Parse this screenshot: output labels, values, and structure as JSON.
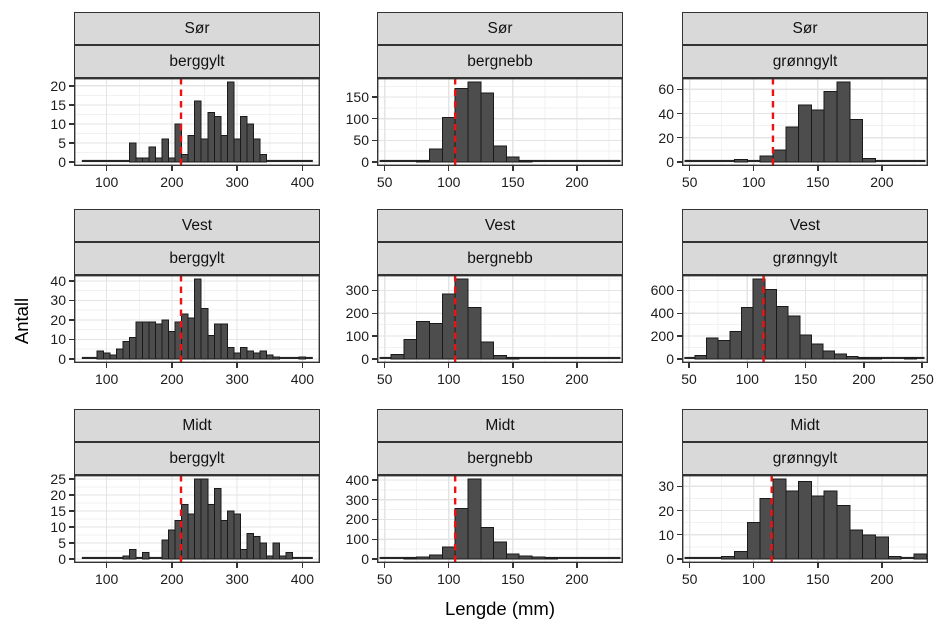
{
  "figure": {
    "ylabel": "Antall",
    "xlabel": "Lengde (mm)",
    "colors": {
      "bar_fill": "#4d4d4d",
      "bar_stroke": "#1a1a1a",
      "vline_red": "#f01010",
      "strip_bg": "#d9d9d9",
      "panel_border": "#333333",
      "grid_major": "#e4e4e4",
      "grid_minor": "#f2f2f2",
      "text": "#151515"
    }
  },
  "chart_data": [
    {
      "type": "bar",
      "facet_row": "Sør",
      "facet_col": "berggylt",
      "xlabel": "Lengde (mm)",
      "ylabel": "Antall",
      "bin_start": 135,
      "bin_width": 10,
      "counts": [
        5,
        1,
        1,
        4,
        1,
        6,
        1,
        10,
        2,
        7,
        16,
        6,
        13,
        12,
        7,
        21,
        6,
        12,
        10,
        6,
        2
      ],
      "vline_x": 214,
      "baseline_span": [
        62,
        416
      ],
      "x_range": [
        50,
        427
      ],
      "x_ticks": [
        100,
        200,
        300,
        400
      ],
      "y_ticks": [
        0,
        5,
        10,
        15,
        20
      ],
      "grid": true
    },
    {
      "type": "bar",
      "facet_row": "Sør",
      "facet_col": "bergnebb",
      "xlabel": "Lengde (mm)",
      "ylabel": "Antall",
      "bin_start": 75,
      "bin_width": 10,
      "counts": [
        2,
        30,
        103,
        170,
        185,
        160,
        37,
        12,
        2
      ],
      "vline_x": 105,
      "baseline_span": [
        46,
        234
      ],
      "x_range": [
        44,
        236
      ],
      "x_ticks": [
        50,
        100,
        150,
        200
      ],
      "y_ticks": [
        0,
        50,
        100,
        150
      ],
      "grid": true
    },
    {
      "type": "bar",
      "facet_row": "Sør",
      "facet_col": "grønngylt",
      "xlabel": "Lengde (mm)",
      "ylabel": "Antall",
      "bin_start": 85,
      "bin_width": 10,
      "counts": [
        2,
        0,
        5,
        10,
        29,
        47,
        43,
        58,
        66,
        35,
        3
      ],
      "vline_x": 115,
      "baseline_span": [
        46,
        234
      ],
      "x_range": [
        44,
        236
      ],
      "x_ticks": [
        50,
        100,
        150,
        200
      ],
      "y_ticks": [
        0,
        20,
        40,
        60
      ],
      "grid": true
    },
    {
      "type": "bar",
      "facet_row": "Vest",
      "facet_col": "berggylt",
      "xlabel": "Lengde (mm)",
      "ylabel": "Antall",
      "bin_start": 85,
      "bin_width": 10,
      "counts": [
        4,
        3,
        2,
        5,
        9,
        11,
        19,
        19,
        19,
        18,
        20,
        14,
        19,
        23,
        21,
        41,
        26,
        12,
        18,
        18,
        6,
        3,
        6,
        4,
        3,
        4,
        2,
        1,
        0,
        0,
        0,
        1
      ],
      "vline_x": 214,
      "baseline_span": [
        62,
        416
      ],
      "x_range": [
        50,
        427
      ],
      "x_ticks": [
        100,
        200,
        300,
        400
      ],
      "y_ticks": [
        0,
        10,
        20,
        30,
        40
      ],
      "grid": true
    },
    {
      "type": "bar",
      "facet_row": "Vest",
      "facet_col": "bergnebb",
      "xlabel": "Lengde (mm)",
      "ylabel": "Antall",
      "bin_start": 55,
      "bin_width": 10,
      "counts": [
        20,
        85,
        165,
        155,
        285,
        350,
        225,
        75,
        15,
        5
      ],
      "vline_x": 105,
      "baseline_span": [
        46,
        234
      ],
      "x_range": [
        44,
        236
      ],
      "x_ticks": [
        50,
        100,
        150,
        200
      ],
      "y_ticks": [
        0,
        100,
        200,
        300
      ],
      "grid": true
    },
    {
      "type": "bar",
      "facet_row": "Vest",
      "facet_col": "grønngylt",
      "xlabel": "Lengde (mm)",
      "ylabel": "Antall",
      "bin_start": 55,
      "bin_width": 10,
      "counts": [
        30,
        185,
        160,
        240,
        450,
        700,
        610,
        460,
        375,
        210,
        130,
        70,
        45,
        20,
        10,
        5,
        0,
        0,
        8
      ],
      "vline_x": 114,
      "baseline_span": [
        46,
        252
      ],
      "x_range": [
        44,
        255
      ],
      "x_ticks": [
        50,
        100,
        150,
        200,
        250
      ],
      "y_ticks": [
        0,
        200,
        400,
        600
      ],
      "grid": true
    },
    {
      "type": "bar",
      "facet_row": "Midt",
      "facet_col": "berggylt",
      "xlabel": "Lengde (mm)",
      "ylabel": "Antall",
      "bin_start": 125,
      "bin_width": 10,
      "counts": [
        1,
        3,
        0,
        2,
        0,
        0,
        6,
        9,
        12,
        17,
        14,
        25,
        25,
        17,
        22,
        12,
        15,
        14,
        3,
        8,
        7,
        5,
        1,
        5,
        1,
        2
      ],
      "vline_x": 214,
      "baseline_span": [
        62,
        416
      ],
      "x_range": [
        50,
        427
      ],
      "x_ticks": [
        100,
        200,
        300,
        400
      ],
      "y_ticks": [
        0,
        5,
        10,
        15,
        20,
        25
      ],
      "grid": true
    },
    {
      "type": "bar",
      "facet_row": "Midt",
      "facet_col": "bergnebb",
      "xlabel": "Lengde (mm)",
      "ylabel": "Antall",
      "bin_start": 65,
      "bin_width": 10,
      "counts": [
        5,
        10,
        20,
        60,
        255,
        405,
        160,
        85,
        25,
        15,
        10,
        5
      ],
      "vline_x": 105,
      "baseline_span": [
        46,
        234
      ],
      "x_range": [
        44,
        236
      ],
      "x_ticks": [
        50,
        100,
        150,
        200
      ],
      "y_ticks": [
        0,
        100,
        200,
        300,
        400
      ],
      "grid": true
    },
    {
      "type": "bar",
      "facet_row": "Midt",
      "facet_col": "grønngylt",
      "xlabel": "Lengde (mm)",
      "ylabel": "Antall",
      "bin_start": 75,
      "bin_width": 10,
      "counts": [
        1,
        3,
        15,
        25,
        33,
        28,
        32,
        26,
        28,
        22,
        12,
        10,
        9,
        1,
        0,
        2
      ],
      "vline_x": 114,
      "baseline_span": [
        46,
        234
      ],
      "x_range": [
        44,
        236
      ],
      "x_ticks": [
        50,
        100,
        150,
        200
      ],
      "y_ticks": [
        0,
        10,
        20,
        30
      ],
      "grid": true
    }
  ]
}
